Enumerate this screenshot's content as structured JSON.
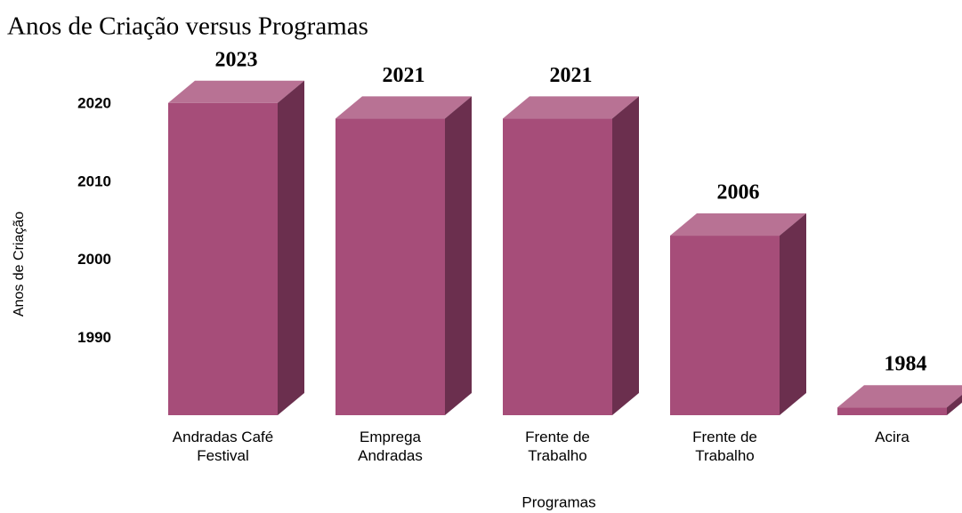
{
  "chart_data": {
    "type": "bar3d",
    "title": "Anos de Criação  versus Programas",
    "x_label": "Programas",
    "y_label": "Anos de Criação",
    "categories": [
      "Andradas Café\nFestival",
      "Emprega\nAndradas",
      "Frente de\nTrabalho",
      "Frente de\nTrabalho",
      "Acira"
    ],
    "values": [
      2023,
      2021,
      2021,
      2006,
      1984
    ],
    "color": "#a64d79",
    "top_color": "#b87294",
    "side_color": "#6b2f4e",
    "ylim": [
      1983,
      2024
    ],
    "yticks": [
      1990,
      2000,
      2010,
      2020
    ],
    "grid": false
  }
}
